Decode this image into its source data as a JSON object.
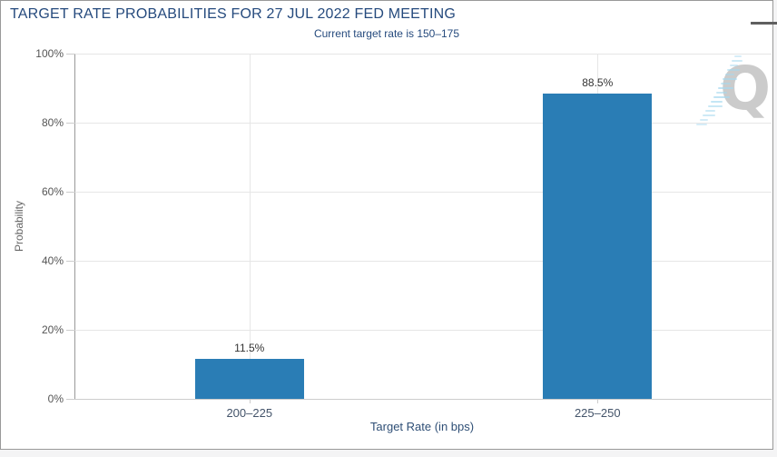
{
  "page": {
    "background": "#f4f4f5",
    "card_background": "#ffffff",
    "card_border": "#999999"
  },
  "icons": {
    "menu": "hamburger-icon"
  },
  "watermark": {
    "letter": "Q"
  },
  "chart_data": {
    "type": "bar",
    "title": "TARGET RATE PROBABILITIES FOR 27 JUL 2022 FED MEETING",
    "subtitle": "Current target rate is 150–175",
    "categories": [
      "200–225",
      "225–250"
    ],
    "series": [
      {
        "name": "Probability",
        "values": [
          11.5,
          88.5
        ],
        "labels": [
          "11.5%",
          "88.5%"
        ],
        "color": "#2a7db5"
      }
    ],
    "xlabel": "Target Rate (in bps)",
    "ylabel": "Probability",
    "ylim": [
      0,
      100
    ],
    "ytick_values": [
      0,
      20,
      40,
      60,
      80,
      100
    ],
    "ytick_labels": [
      "0%",
      "20%",
      "40%",
      "60%",
      "80%",
      "100%"
    ],
    "grid": true,
    "legend": "none"
  }
}
